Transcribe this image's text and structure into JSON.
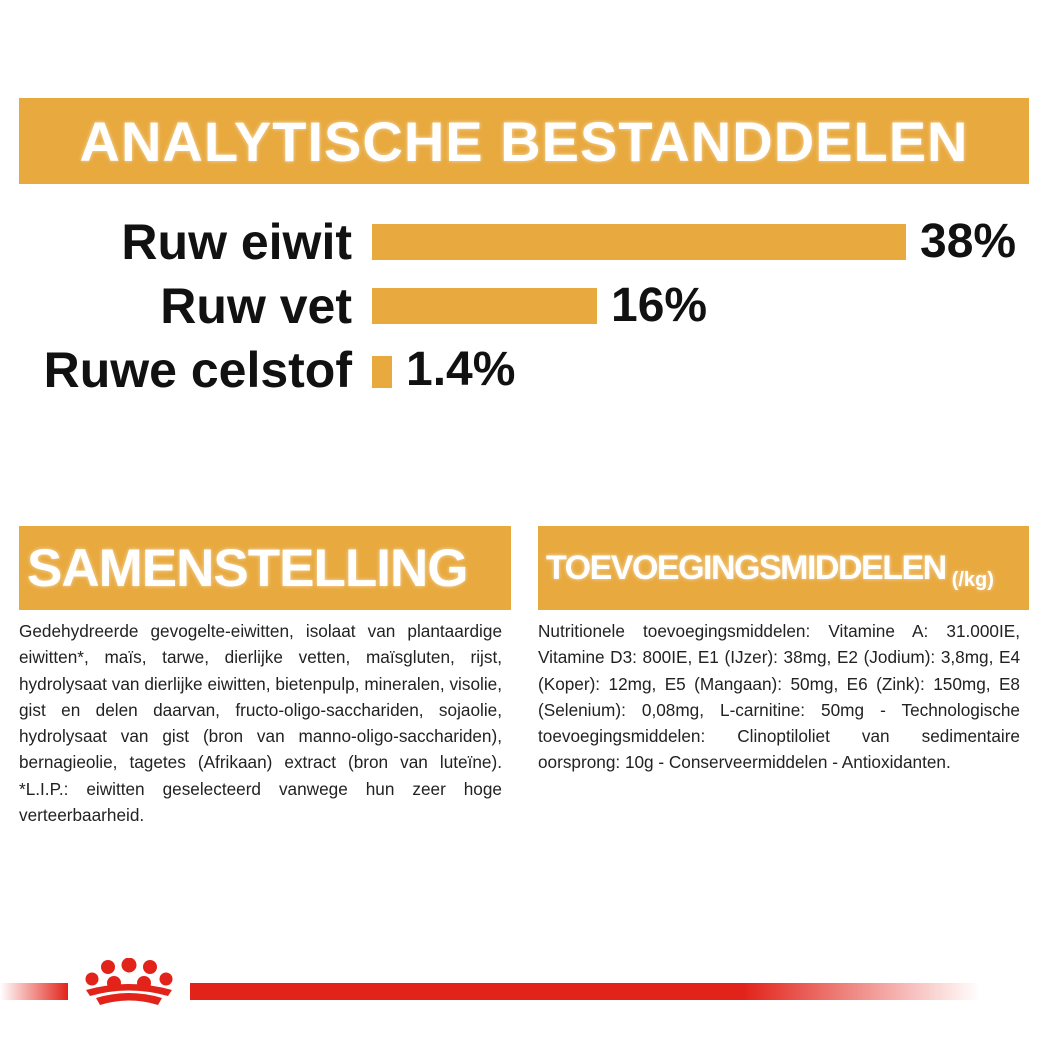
{
  "analysis": {
    "title": "ANALYTISCHE BESTANDDELEN",
    "bar_color": "#e8a93e",
    "nutrients": [
      {
        "label": "Ruw eiwit",
        "value": "38%",
        "percent": 38
      },
      {
        "label": "Ruw vet",
        "value": "16%",
        "percent": 16
      },
      {
        "label": "Ruwe celstof",
        "value": "1.4%",
        "percent": 1.4
      }
    ]
  },
  "composition": {
    "title": "SAMENSTELLING",
    "text": "Gedehydreerde gevogelte-eiwitten, isolaat van plantaardige eiwitten*, maïs, tarwe, dierlijke vetten, maïsgluten, rijst, hydrolysaat van dierlijke eiwitten, bietenpulp, mineralen, visolie, gist en delen daarvan, fructo-oligo-sacchariden, sojaolie, hydrolysaat van gist (bron van manno-oligo-sacchariden), bernagieolie, tagetes (Afrikaan) extract (bron van luteïne). *L.I.P.: eiwitten geselecteerd vanwege hun zeer hoge verteerbaarheid."
  },
  "additives": {
    "title": "TOEVOEGINGSMIDDELEN",
    "unit": "(/kg)",
    "text": "Nutritionele toevoegingsmiddelen: Vitamine A: 31.000IE, Vitamine D3: 800IE, E1 (IJzer): 38mg, E2 (Jodium): 3,8mg, E4 (Koper): 12mg, E5 (Mangaan): 50mg, E6 (Zink): 150mg, E8 (Selenium): 0,08mg, L-carnitine: 50mg - Technologische toevoegingsmiddelen: Clinoptiloliet van sedimentaire oorsprong: 10g - Conserveermiddelen - Antioxidanten."
  },
  "footer": {
    "logo_icon": "crown-icon",
    "stripe_color": "#e2231a"
  }
}
